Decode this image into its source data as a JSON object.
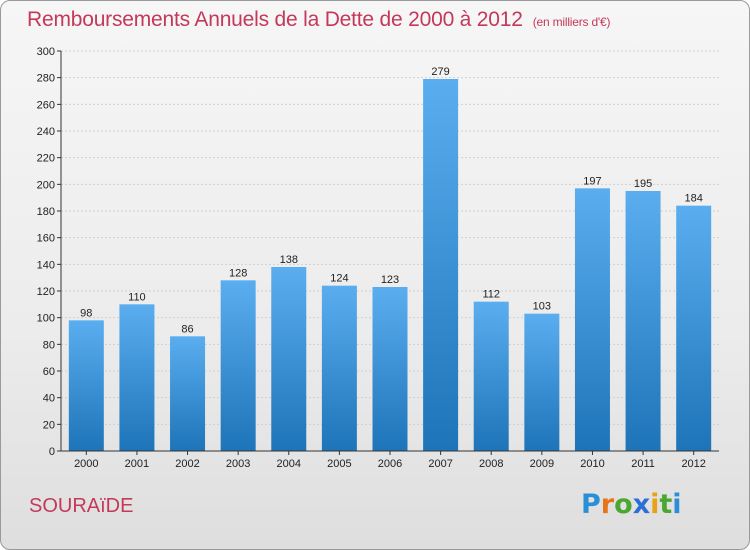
{
  "header": {
    "title": "Remboursements Annuels de la Dette de 2000 à 2012",
    "subtitle": "(en milliers d'€)"
  },
  "commune": "SOURAïDE",
  "logo": {
    "letters": [
      {
        "ch": "P",
        "color": "#2a8fd6"
      },
      {
        "ch": "r",
        "color": "#e8741a"
      },
      {
        "ch": "o",
        "color": "#4aa832"
      },
      {
        "ch": "x",
        "color": "#2a6fd6"
      },
      {
        "ch": "i",
        "color": "#e8a21a"
      },
      {
        "ch": "t",
        "color": "#4aa832"
      },
      {
        "ch": "i",
        "color": "#2a8fd6"
      }
    ]
  },
  "colors": {
    "bar_top": "#5aaef0",
    "bar_bottom": "#1e74b8",
    "grid": "#cfcfcf",
    "axis": "#333333"
  },
  "chart_data": {
    "type": "bar",
    "categories": [
      "2000",
      "2001",
      "2002",
      "2003",
      "2004",
      "2005",
      "2006",
      "2007",
      "2008",
      "2009",
      "2010",
      "2011",
      "2012"
    ],
    "values": [
      98,
      110,
      86,
      128,
      138,
      124,
      123,
      279,
      112,
      103,
      197,
      195,
      184
    ],
    "title": "Remboursements Annuels de la Dette de 2000 à 2012",
    "subtitle": "(en milliers d'€)",
    "ylim": [
      0,
      300
    ],
    "yticks": [
      0,
      20,
      40,
      60,
      80,
      100,
      120,
      140,
      160,
      180,
      200,
      220,
      240,
      260,
      280,
      300
    ],
    "grid": true,
    "legend": "none"
  }
}
